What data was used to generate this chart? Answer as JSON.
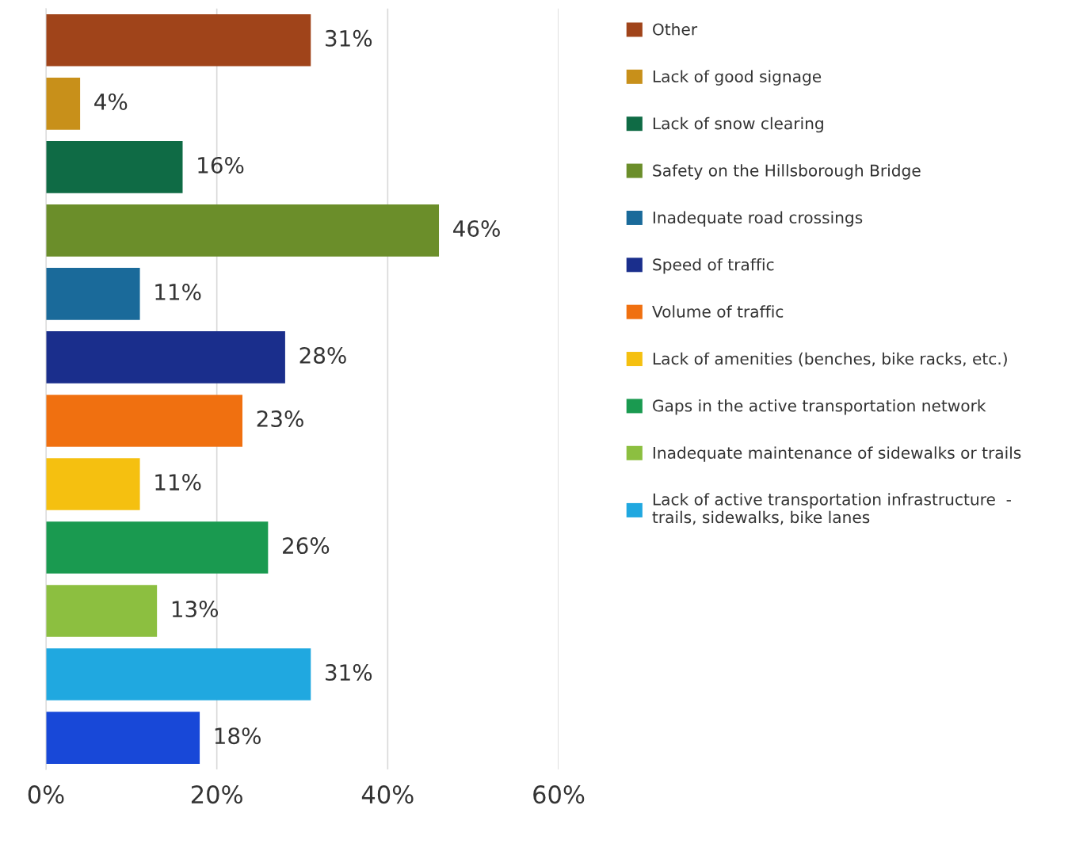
{
  "chart_data": {
    "type": "bar",
    "orientation": "horizontal",
    "categories": [
      null
    ],
    "series": [
      {
        "name": "Other",
        "color": "#a0441a",
        "values": [
          31
        ],
        "value_labels": [
          "31%"
        ]
      },
      {
        "name": "Lack of good signage",
        "color": "#c8901a",
        "values": [
          4
        ],
        "value_labels": [
          "4%"
        ]
      },
      {
        "name": "Lack of snow clearing",
        "color": "#0f6b45",
        "values": [
          16
        ],
        "value_labels": [
          "16%"
        ]
      },
      {
        "name": "Safety on the Hillsborough Bridge",
        "color": "#6b8e2a",
        "values": [
          46
        ],
        "value_labels": [
          "46%"
        ]
      },
      {
        "name": "Inadequate road crossings",
        "color": "#1a6a9a",
        "values": [
          11
        ],
        "value_labels": [
          "11%"
        ]
      },
      {
        "name": "Speed of traffic",
        "color": "#1a2e8c",
        "values": [
          28
        ],
        "value_labels": [
          "28%"
        ]
      },
      {
        "name": "Volume of traffic",
        "color": "#f07010",
        "values": [
          23
        ],
        "value_labels": [
          "23%"
        ]
      },
      {
        "name": "Lack of amenities (benches, bike racks, etc.)",
        "color": "#f5c010",
        "values": [
          11
        ],
        "value_labels": [
          "11%"
        ]
      },
      {
        "name": "Gaps in the active transportation network",
        "color": "#1a9a50",
        "values": [
          26
        ],
        "value_labels": [
          "26%"
        ]
      },
      {
        "name": "Inadequate maintenance of sidewalks or trails",
        "color": "#8cbf40",
        "values": [
          13
        ],
        "value_labels": [
          "13%"
        ]
      },
      {
        "name": "Lack of active transportation infrastructure  -\ntrails, sidewalks, bike lanes",
        "color": "#20a8e0",
        "values": [
          31
        ],
        "value_labels": [
          "31%"
        ]
      },
      {
        "color": "#1848d8",
        "values": [
          18
        ],
        "value_labels": [
          "18%"
        ]
      }
    ],
    "xlim": [
      0,
      60
    ],
    "xticks": [
      {
        "value": 0,
        "label": "0%"
      },
      {
        "value": 20,
        "label": "20%"
      },
      {
        "value": 40,
        "label": "40%"
      },
      {
        "value": 60,
        "label": "60%"
      }
    ],
    "grid": "x",
    "legend": "right",
    "tick_labels": "x"
  }
}
